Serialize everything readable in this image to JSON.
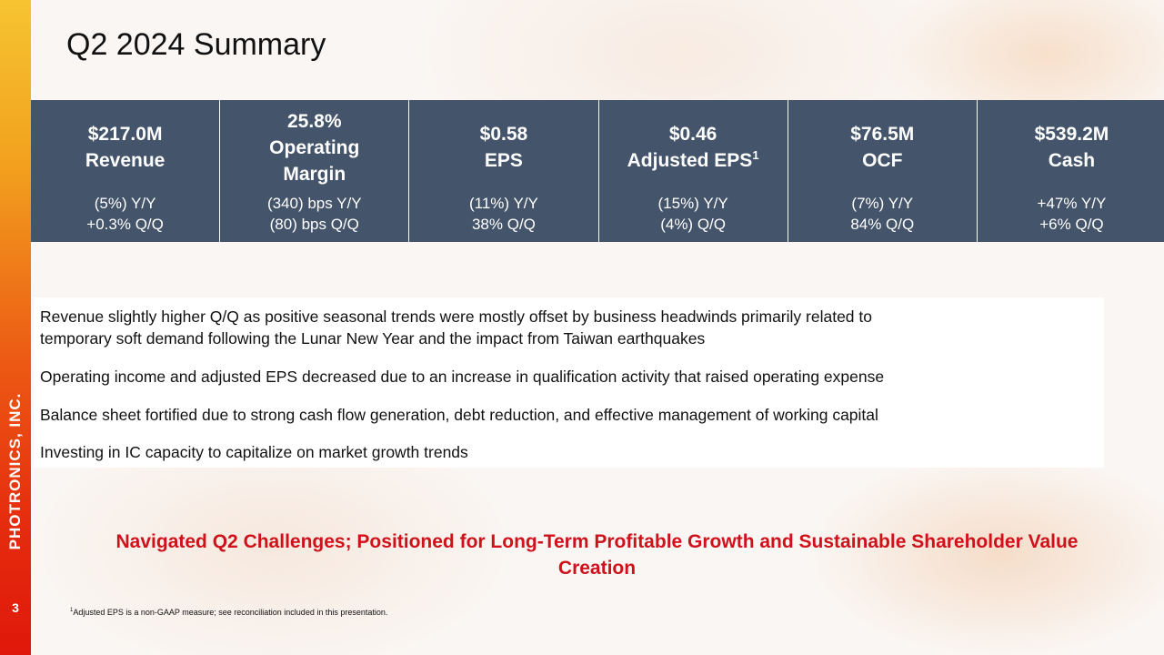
{
  "title": "Q2 2024 Summary",
  "brand": "PHOTRONICS, INC.",
  "page_number": "3",
  "metrics": [
    {
      "value": "$217.0M",
      "label": "Revenue",
      "yy": "(5%) Y/Y",
      "qq": "+0.3% Q/Q"
    },
    {
      "value": "25.8%",
      "label": "Operating",
      "label2": "Margin",
      "yy": "(340) bps Y/Y",
      "qq": "(80) bps Q/Q"
    },
    {
      "value": "$0.58",
      "label": "EPS",
      "yy": "(11%) Y/Y",
      "qq": "38% Q/Q"
    },
    {
      "value": "$0.46",
      "label": "Adjusted EPS",
      "sup": "1",
      "yy": "(15%) Y/Y",
      "qq": "(4%) Q/Q"
    },
    {
      "value": "$76.5M",
      "label": "OCF",
      "yy": "(7%) Y/Y",
      "qq": "84% Q/Q"
    },
    {
      "value": "$539.2M",
      "label": "Cash",
      "yy": "+47% Y/Y",
      "qq": "+6% Q/Q"
    }
  ],
  "bullets": [
    {
      "line1": "Revenue slightly higher Q/Q as positive seasonal trends were mostly offset by business headwinds primarily related to",
      "line2": "temporary soft demand following the Lunar New Year and the impact from Taiwan earthquakes"
    },
    {
      "line1": "Operating income and adjusted EPS decreased due to an increase in qualification activity that raised operating expense"
    },
    {
      "line1": "Balance sheet fortified due to strong cash flow generation, debt reduction, and effective management of working capital"
    },
    {
      "line1": "Investing in IC capacity to capitalize on market growth trends"
    }
  ],
  "tagline": {
    "line1": "Navigated Q2 Challenges; Positioned for Long-Term Profitable Growth and Sustainable Shareholder Value",
    "line2": "Creation"
  },
  "footnote": {
    "sup": "1",
    "text": "Adjusted EPS is a non-GAAP measure; see reconciliation included in this presentation."
  },
  "colors": {
    "metrics_bg": "#44546a",
    "tagline": "#d0111b",
    "sidebar_top": "#f6c431",
    "sidebar_bottom": "#e0180b"
  }
}
